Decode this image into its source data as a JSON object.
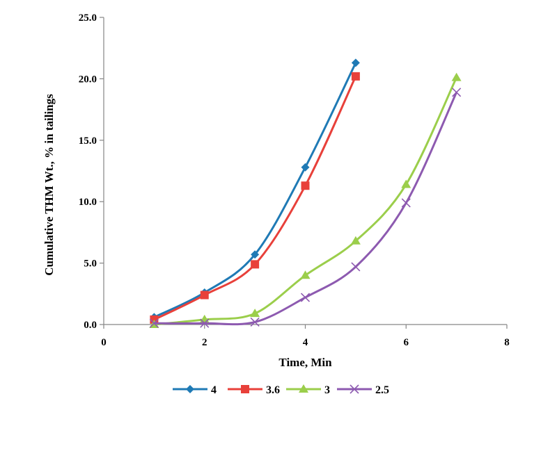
{
  "chart_data": {
    "type": "line",
    "xlabel": "Time, Min",
    "ylabel": "Cumulative THM Wt., % in tailings",
    "xlim": [
      0,
      8
    ],
    "ylim": [
      0,
      25
    ],
    "x_ticks": [
      0,
      2,
      4,
      6,
      8
    ],
    "x_tick_labels": [
      "0",
      "2",
      "4",
      "6",
      "8"
    ],
    "y_ticks": [
      0,
      5,
      10,
      15,
      20,
      25
    ],
    "y_tick_labels": [
      "0.0",
      "5.0",
      "10.0",
      "15.0",
      "20.0",
      "25.0"
    ],
    "grid": false,
    "legend_position": "bottom",
    "series": [
      {
        "name": "4",
        "color": "#1f7ab5",
        "marker": "diamond",
        "x": [
          1,
          2,
          3,
          4,
          5
        ],
        "y": [
          0.6,
          2.6,
          5.7,
          12.8,
          21.3
        ]
      },
      {
        "name": "3.6",
        "color": "#e8403a",
        "marker": "square",
        "x": [
          1,
          2,
          3,
          4,
          5
        ],
        "y": [
          0.4,
          2.4,
          4.9,
          11.3,
          20.2
        ]
      },
      {
        "name": "3",
        "color": "#9bce4b",
        "marker": "triangle",
        "x": [
          1,
          2,
          3,
          4,
          5,
          6,
          7
        ],
        "y": [
          0.0,
          0.4,
          0.9,
          4.0,
          6.8,
          11.4,
          20.1
        ]
      },
      {
        "name": "2.5",
        "color": "#8d5ab0",
        "marker": "x",
        "x": [
          1,
          2,
          3,
          4,
          5,
          6,
          7
        ],
        "y": [
          0.1,
          0.1,
          0.2,
          2.2,
          4.7,
          9.9,
          18.9
        ]
      }
    ]
  }
}
